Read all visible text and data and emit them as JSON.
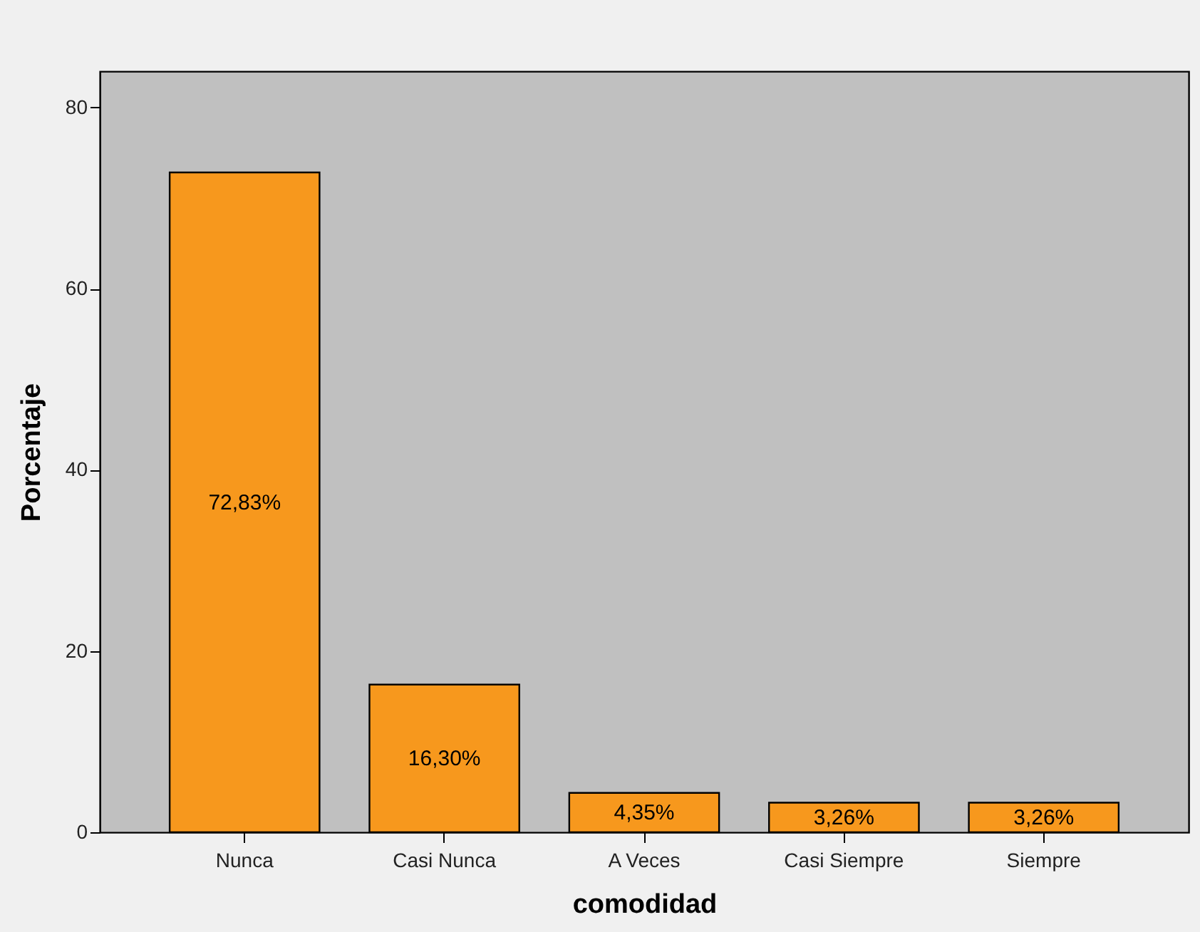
{
  "chart_data": {
    "type": "bar",
    "xlabel": "comodidad",
    "ylabel": "Porcentaje",
    "categories": [
      "Nunca",
      "Casi Nunca",
      "A Veces",
      "Casi Siempre",
      "Siempre"
    ],
    "values": [
      72.83,
      16.3,
      4.35,
      3.26,
      3.26
    ],
    "value_labels": [
      "72,83%",
      "16,30%",
      "4,35%",
      "3,26%",
      "3,26%"
    ],
    "color": "#f7981d",
    "ylim": [
      0,
      84
    ],
    "yticks": [
      0,
      20,
      40,
      60,
      80
    ],
    "grid": false
  }
}
